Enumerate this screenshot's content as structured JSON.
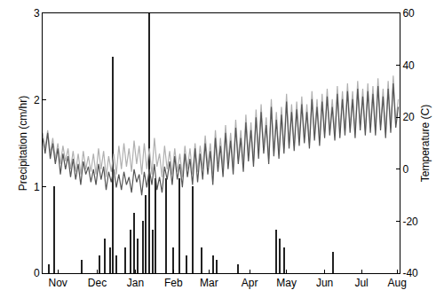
{
  "chart_data": {
    "type": "bar",
    "y_label": "Precipitation (cm/hr)",
    "y2_label": "Temperature (C)",
    "xlim": [
      0,
      281
    ],
    "xticks": [
      {
        "value": 12,
        "label": "Nov"
      },
      {
        "value": 43,
        "label": "Dec"
      },
      {
        "value": 73,
        "label": "Jan"
      },
      {
        "value": 103,
        "label": "Feb"
      },
      {
        "value": 131,
        "label": "Mar"
      },
      {
        "value": 163,
        "label": "Apr"
      },
      {
        "value": 192,
        "label": "May"
      },
      {
        "value": 222,
        "label": "Jun"
      },
      {
        "value": 251,
        "label": "Jul"
      },
      {
        "value": 279,
        "label": "Aug"
      }
    ],
    "ylim": [
      0,
      3
    ],
    "yticks": [
      0,
      1,
      2,
      3
    ],
    "y2lim": [
      -40,
      60
    ],
    "y2ticks": [
      -40,
      -20,
      0,
      20,
      40,
      60
    ],
    "grid": false,
    "series": [
      {
        "type": "line",
        "axis": "y2",
        "color": "#b0b0b0",
        "x": [
          0,
          2,
          4,
          6,
          8,
          10,
          12,
          14,
          16,
          18,
          20,
          22,
          24,
          26,
          28,
          30,
          32,
          34,
          36,
          38,
          40,
          42,
          44,
          46,
          48,
          50,
          52,
          54,
          56,
          58,
          60,
          62,
          64,
          66,
          68,
          70,
          72,
          74,
          76,
          78,
          80,
          82,
          84,
          86,
          88,
          90,
          92,
          94,
          96,
          98,
          100,
          102,
          104,
          106,
          108,
          110,
          112,
          114,
          116,
          118,
          120,
          122,
          124,
          126,
          128,
          130,
          132,
          134,
          136,
          138,
          140,
          142,
          144,
          146,
          148,
          150,
          152,
          154,
          156,
          158,
          160,
          162,
          164,
          166,
          168,
          170,
          172,
          174,
          176,
          178,
          180,
          182,
          184,
          186,
          188,
          190,
          192,
          194,
          196,
          198,
          200,
          202,
          204,
          206,
          208,
          210,
          212,
          214,
          216,
          218,
          220,
          222,
          224,
          226,
          228,
          230,
          232,
          234,
          236,
          238,
          240,
          242,
          244,
          246,
          248,
          250,
          252,
          254,
          256,
          258,
          260,
          262,
          264,
          266,
          268,
          270,
          272,
          274,
          276,
          278,
          280
        ],
        "values": [
          14,
          8,
          15,
          6,
          12,
          4,
          10,
          2,
          9,
          3,
          8,
          0,
          7,
          -1,
          6,
          -2,
          7,
          0,
          5,
          -1,
          6,
          -2,
          8,
          0,
          7,
          -3,
          5,
          -1,
          6,
          -2,
          9,
          0,
          10,
          1,
          8,
          -1,
          11,
          2,
          9,
          -2,
          10,
          0,
          8,
          -2,
          12,
          1,
          6,
          -3,
          9,
          0,
          7,
          -2,
          8,
          -1,
          6,
          -3,
          9,
          0,
          8,
          -2,
          10,
          -1,
          9,
          0,
          13,
          1,
          10,
          -2,
          15,
          2,
          12,
          0,
          17,
          3,
          14,
          1,
          19,
          4,
          15,
          2,
          21,
          5,
          18,
          3,
          23,
          6,
          25,
          8,
          20,
          4,
          27,
          7,
          22,
          6,
          24,
          8,
          29,
          10,
          25,
          9,
          26,
          11,
          28,
          12,
          25,
          10,
          30,
          13,
          27,
          11,
          29,
          14,
          31,
          15,
          27,
          13,
          32,
          14,
          30,
          15,
          33,
          16,
          30,
          14,
          34,
          17,
          31,
          15,
          33,
          16,
          32,
          15,
          35,
          17,
          31,
          14,
          34,
          16,
          36,
          18,
          27
        ]
      },
      {
        "type": "line",
        "axis": "y2",
        "color": "#555555",
        "x": [
          0,
          2,
          4,
          6,
          8,
          10,
          12,
          14,
          16,
          18,
          20,
          22,
          24,
          26,
          28,
          30,
          32,
          34,
          36,
          38,
          40,
          42,
          44,
          46,
          48,
          50,
          52,
          54,
          56,
          58,
          60,
          62,
          64,
          66,
          68,
          70,
          72,
          74,
          76,
          78,
          80,
          82,
          84,
          86,
          88,
          90,
          92,
          94,
          96,
          98,
          100,
          102,
          104,
          106,
          108,
          110,
          112,
          114,
          116,
          118,
          120,
          122,
          124,
          126,
          128,
          130,
          132,
          134,
          136,
          138,
          140,
          142,
          144,
          146,
          148,
          150,
          152,
          154,
          156,
          158,
          160,
          162,
          164,
          166,
          168,
          170,
          172,
          174,
          176,
          178,
          180,
          182,
          184,
          186,
          188,
          190,
          192,
          194,
          196,
          198,
          200,
          202,
          204,
          206,
          208,
          210,
          212,
          214,
          216,
          218,
          220,
          222,
          224,
          226,
          228,
          230,
          232,
          234,
          236,
          238,
          240,
          242,
          244,
          246,
          248,
          250,
          252,
          254,
          256,
          258,
          260,
          262,
          264,
          266,
          268,
          270,
          272,
          274,
          276,
          278,
          280
        ],
        "values": [
          12,
          6,
          14,
          4,
          10,
          2,
          8,
          -2,
          6,
          0,
          5,
          -3,
          4,
          -4,
          2,
          -6,
          3,
          -2,
          1,
          -5,
          0,
          -6,
          2,
          -4,
          1,
          -8,
          -1,
          -5,
          0,
          -7,
          -2,
          -8,
          -1,
          -6,
          -3,
          -9,
          0,
          -5,
          -2,
          -10,
          -1,
          -7,
          0,
          -6,
          2,
          -8,
          -3,
          -9,
          1,
          -4,
          3,
          -6,
          5,
          -4,
          2,
          -7,
          6,
          -3,
          4,
          -6,
          8,
          -5,
          6,
          -4,
          10,
          -2,
          7,
          -6,
          12,
          -1,
          9,
          -3,
          14,
          0,
          11,
          -2,
          16,
          2,
          12,
          -1,
          18,
          3,
          15,
          1,
          20,
          4,
          22,
          6,
          17,
          2,
          24,
          5,
          19,
          4,
          21,
          6,
          26,
          8,
          22,
          7,
          23,
          9,
          25,
          10,
          22,
          8,
          27,
          11,
          24,
          9,
          26,
          12,
          28,
          13,
          24,
          11,
          29,
          12,
          27,
          13,
          30,
          14,
          27,
          12,
          31,
          15,
          28,
          13,
          30,
          14,
          29,
          13,
          32,
          15,
          28,
          12,
          31,
          14,
          33,
          16,
          24
        ]
      },
      {
        "type": "bar",
        "color": "#222222",
        "x": [
          5,
          9,
          31,
          45,
          49,
          53,
          55,
          58,
          65,
          69,
          72,
          75,
          79,
          81,
          84,
          87,
          89,
          97,
          103,
          108,
          113,
          118,
          125,
          134,
          137,
          154,
          184,
          187,
          190,
          229
        ],
        "values": [
          0.1,
          1.0,
          0.15,
          0.2,
          0.4,
          0.3,
          2.5,
          0.2,
          0.3,
          0.5,
          0.7,
          0.4,
          0.6,
          0.9,
          3.0,
          0.5,
          1.1,
          1.1,
          0.3,
          1.1,
          0.2,
          1.0,
          0.3,
          0.2,
          0.15,
          0.1,
          0.5,
          0.4,
          0.3,
          0.25
        ]
      }
    ]
  }
}
